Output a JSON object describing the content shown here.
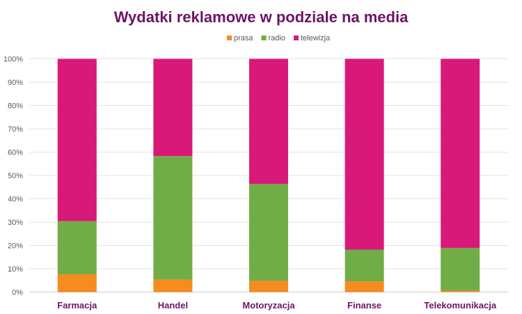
{
  "chart_data": {
    "type": "bar",
    "stacked": "percent",
    "title": "Wydatki reklamowe w podziale na media",
    "categories": [
      "Farmacja",
      "Handel",
      "Motoryzacja",
      "Finanse",
      "Telekomunikacja"
    ],
    "series": [
      {
        "name": "prasa",
        "color": "#f68b1f",
        "values": [
          7.6,
          5.4,
          4.8,
          4.6,
          0.6
        ]
      },
      {
        "name": "radio",
        "color": "#70ad47",
        "values": [
          22.8,
          52.9,
          41.6,
          13.6,
          18.3
        ]
      },
      {
        "name": "telewizja",
        "color": "#d9197a",
        "values": [
          69.6,
          41.7,
          53.6,
          81.8,
          81.1
        ]
      }
    ],
    "ylim": [
      0,
      100
    ],
    "yticks": [
      "0%",
      "10%",
      "20%",
      "30%",
      "40%",
      "50%",
      "60%",
      "70%",
      "80%",
      "90%",
      "100%"
    ],
    "grid": true,
    "legend": "top",
    "title_color": "#6e1466",
    "category_label_color": "#6e1466"
  }
}
